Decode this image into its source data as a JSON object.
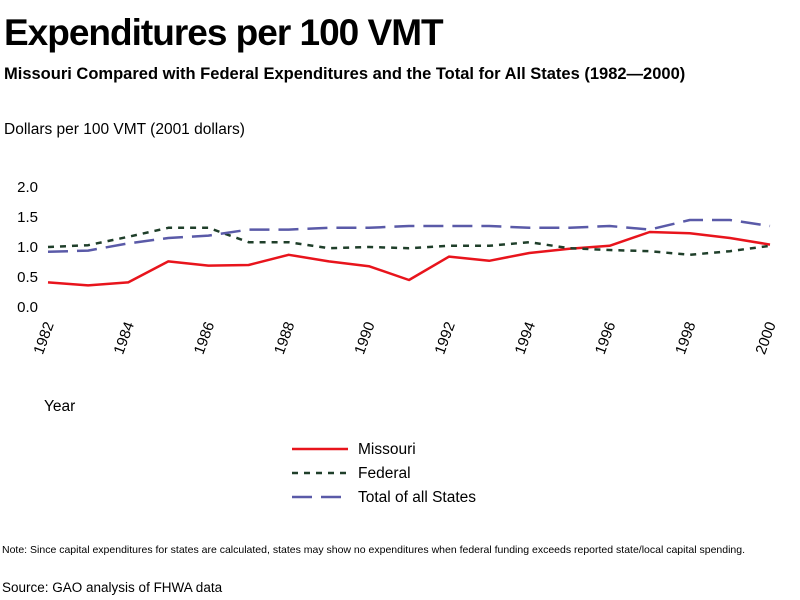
{
  "header": {
    "title": "Expenditures per 100 VMT",
    "subtitle": "Missouri Compared with Federal Expenditures and the Total for All States (1982—2000)"
  },
  "footer": {
    "note": "Note: Since capital expenditures for states are calculated, states may show no expenditures when federal funding exceeds reported state/local capital spending.",
    "source": "Source: GAO analysis of FHWA data"
  },
  "chart_data": {
    "type": "line",
    "title": "Expenditures per 100 VMT",
    "ylabel": "Dollars per 100 VMT (2001 dollars)",
    "xlabel": "Year",
    "x": [
      1982,
      1983,
      1984,
      1985,
      1986,
      1987,
      1988,
      1989,
      1990,
      1991,
      1992,
      1993,
      1994,
      1995,
      1996,
      1997,
      1998,
      1999,
      2000
    ],
    "xticks": [
      "1982",
      "1984",
      "1986",
      "1988",
      "1990",
      "1992",
      "1994",
      "1996",
      "1998",
      "2000"
    ],
    "yticks": [
      "0.0",
      "0.5",
      "1.0",
      "1.5",
      "2.0"
    ],
    "ylim": [
      0,
      2
    ],
    "grid": false,
    "legend_position": "below",
    "series": [
      {
        "name": "Missouri",
        "style": "solid",
        "color": "#e8141c",
        "values": [
          0.41,
          0.36,
          0.41,
          0.76,
          0.69,
          0.7,
          0.87,
          0.76,
          0.68,
          0.45,
          0.84,
          0.77,
          0.9,
          0.97,
          1.02,
          1.25,
          1.23,
          1.15,
          1.04
        ]
      },
      {
        "name": "Federal",
        "style": "dotted",
        "color": "#1f3f2a",
        "values": [
          1.0,
          1.03,
          1.17,
          1.32,
          1.32,
          1.08,
          1.08,
          0.98,
          1.0,
          0.98,
          1.02,
          1.02,
          1.08,
          0.98,
          0.95,
          0.93,
          0.87,
          0.93,
          1.02
        ]
      },
      {
        "name": "Total of all States",
        "style": "dashed",
        "color": "#5a5aa8",
        "values": [
          0.92,
          0.94,
          1.06,
          1.15,
          1.19,
          1.29,
          1.29,
          1.32,
          1.32,
          1.35,
          1.35,
          1.35,
          1.32,
          1.32,
          1.35,
          1.29,
          1.45,
          1.45,
          1.35
        ]
      }
    ]
  }
}
